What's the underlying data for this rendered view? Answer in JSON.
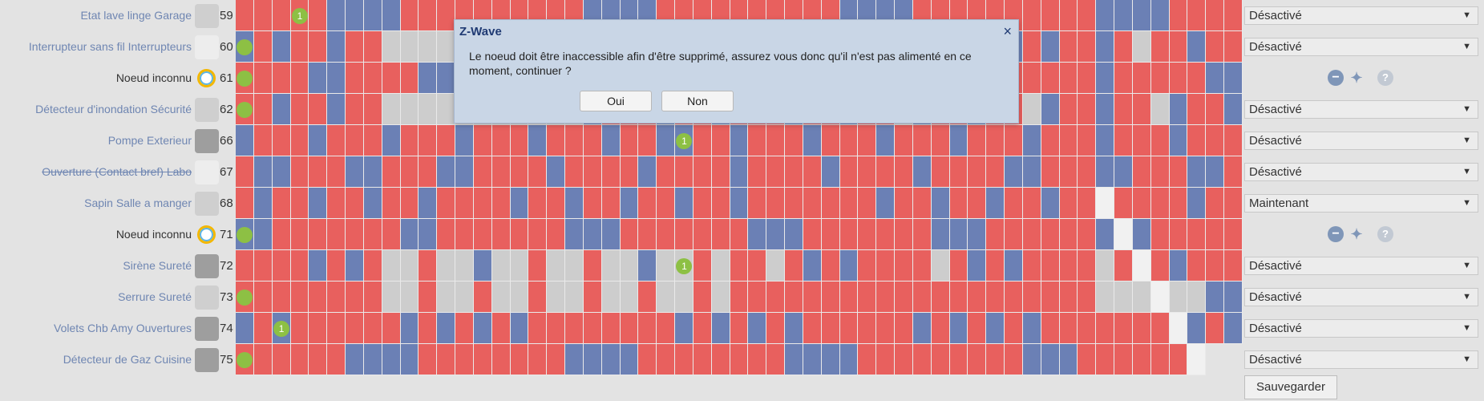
{
  "colors": {
    "red": "#e8605e",
    "blue": "#6b80b5",
    "grey": "#cdcdcd",
    "white": "#f1f1f1",
    "badge": "#8dc044",
    "link": "#6f86b2"
  },
  "rows": [
    {
      "name": "Etat lave linge Garage",
      "id": "59",
      "icon": "device-icon",
      "status": "Désactivé"
    },
    {
      "name": "Interrupteur sans fil Interrupteurs",
      "id": "60",
      "icon": "device-icon",
      "status": "Désactivé"
    },
    {
      "name": "Noeud inconnu",
      "id": "61",
      "icon": "unknown-node-icon",
      "status": ""
    },
    {
      "name": "Détecteur d'inondation Sécurité",
      "id": "62",
      "icon": "device-icon",
      "status": "Désactivé"
    },
    {
      "name": "Pompe Exterieur",
      "id": "66",
      "icon": "device-icon",
      "status": "Désactivé"
    },
    {
      "name": "Ouverture (Contact bref) Labo",
      "id": "67",
      "icon": "device-icon",
      "status": "Désactivé"
    },
    {
      "name": "Sapin Salle a manger",
      "id": "68",
      "icon": "device-icon",
      "status": "Maintenant"
    },
    {
      "name": "Noeud inconnu",
      "id": "71",
      "icon": "unknown-node-icon",
      "status": ""
    },
    {
      "name": "Sirène Sureté",
      "id": "72",
      "icon": "device-icon",
      "status": "Désactivé"
    },
    {
      "name": "Serrure Sureté",
      "id": "73",
      "icon": "device-icon",
      "status": "Désactivé"
    },
    {
      "name": "Volets Chb Amy Ouvertures",
      "id": "74",
      "icon": "device-icon",
      "status": "Désactivé"
    },
    {
      "name": "Détecteur de Gaz Cuisine",
      "id": "75",
      "icon": "device-icon",
      "status": "Désactivé"
    }
  ],
  "badges": [
    {
      "row": 0,
      "col": 3,
      "label": "1"
    },
    {
      "row": 1,
      "col": 0,
      "label": ""
    },
    {
      "row": 2,
      "col": 0,
      "label": ""
    },
    {
      "row": 3,
      "col": 0,
      "label": ""
    },
    {
      "row": 4,
      "col": 24,
      "label": "1"
    },
    {
      "row": 7,
      "col": 0,
      "label": ""
    },
    {
      "row": 8,
      "col": 24,
      "label": "1"
    },
    {
      "row": 9,
      "col": 0,
      "label": ""
    },
    {
      "row": 10,
      "col": 2,
      "label": "1"
    },
    {
      "row": 11,
      "col": 0,
      "label": ""
    }
  ],
  "save_label": "Sauvegarder",
  "dialog": {
    "title": "Z-Wave",
    "close": "×",
    "message": "Le noeud doit être inaccessible afin d'être supprimé, assurez vous donc qu'il n'est pas alimenté en ce moment, continuer ?",
    "yes": "Oui",
    "no": "Non"
  },
  "actions": {
    "remove": "−",
    "repair": "✦",
    "help": "?"
  }
}
